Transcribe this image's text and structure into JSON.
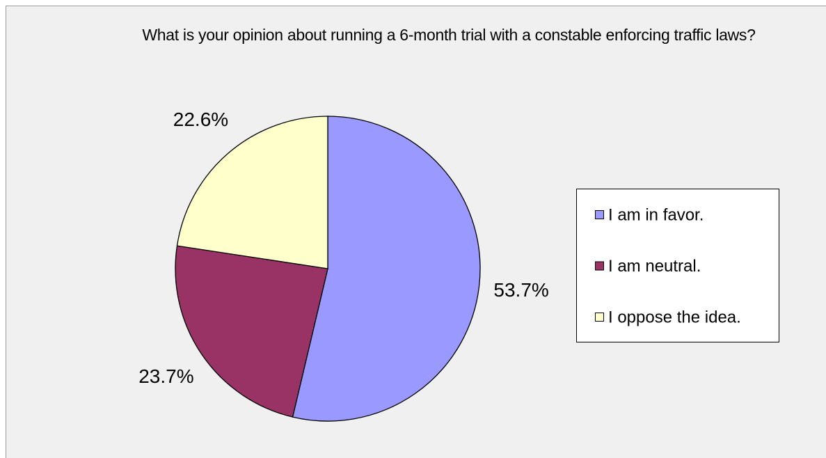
{
  "chart_data": {
    "type": "pie",
    "title": "What is your opinion about running a 6-month trial with a constable enforcing traffic laws?",
    "categories": [
      "I am in favor.",
      "I am neutral.",
      "I oppose the idea."
    ],
    "values": [
      53.7,
      23.7,
      22.6
    ],
    "value_labels": [
      "53.7%",
      "23.7%",
      "22.6%"
    ],
    "colors": [
      "#9999ff",
      "#993366",
      "#ffffcc"
    ],
    "legend": "right"
  }
}
